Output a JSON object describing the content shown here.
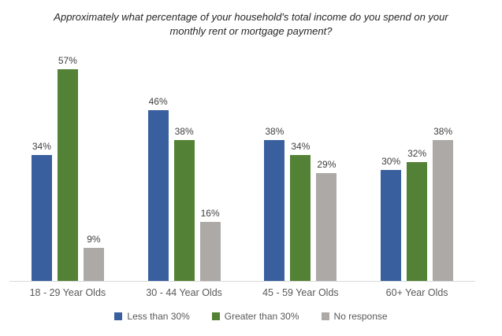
{
  "chart_data": {
    "type": "bar",
    "title": "Approximately what percentage of your household's total income do you spend on your monthly rent or mortgage payment?",
    "categories": [
      "18 - 29 Year Olds",
      "30 - 44 Year Olds",
      "45 - 59 Year Olds",
      "60+ Year Olds"
    ],
    "series": [
      {
        "name": "Less than 30%",
        "color": "#3A5F9F",
        "values": [
          34,
          46,
          38,
          30
        ]
      },
      {
        "name": "Greater than 30%",
        "color": "#538135",
        "values": [
          57,
          38,
          34,
          32
        ]
      },
      {
        "name": "No response",
        "color": "#ACA9A6",
        "values": [
          9,
          16,
          29,
          38
        ]
      }
    ],
    "data_labels": [
      "34%",
      "57%",
      "9%",
      "46%",
      "38%",
      "16%",
      "38%",
      "34%",
      "29%",
      "30%",
      "32%",
      "38%"
    ],
    "value_suffix": "%",
    "xlabel": "",
    "ylabel": "",
    "ylim": [
      0,
      63
    ],
    "grid": false,
    "y_axis_visible": false,
    "axis_line_color": "#D9D9D9",
    "legend_position": "bottom"
  }
}
